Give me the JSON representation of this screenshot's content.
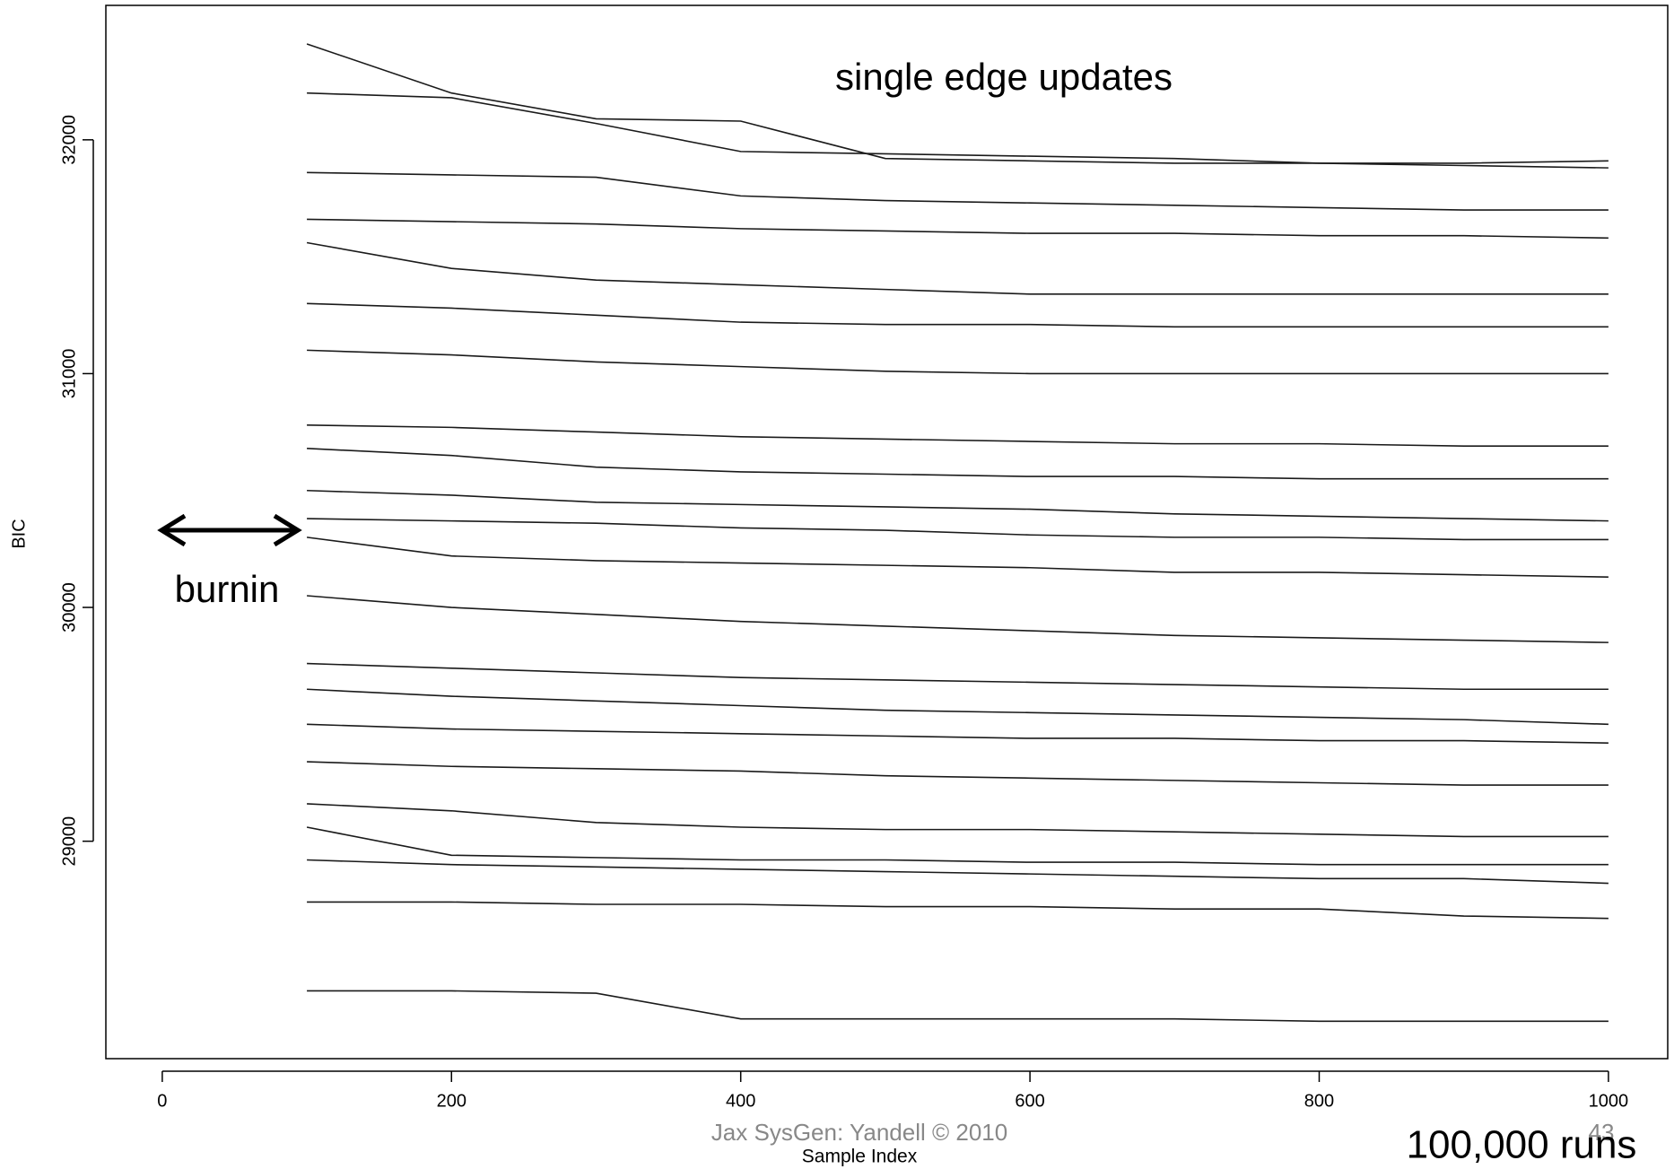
{
  "chart_data": {
    "type": "line",
    "title": "single edge  updates",
    "x_label": "Sample Index",
    "y_label": "BIC",
    "annotations": [
      "burnin",
      "100,000 runs"
    ],
    "footer": "Jax SysGen: Yandell © 2010",
    "page_number": "43",
    "color": "#1a1a1a",
    "grid": false,
    "xlim": [
      -39,
      1041
    ],
    "ylim": [
      28070,
      32575
    ],
    "xticks": [
      0,
      200,
      400,
      600,
      800,
      1000
    ],
    "yticks": [
      29000,
      30000,
      31000,
      32000
    ],
    "x": [
      100,
      200,
      300,
      400,
      500,
      600,
      700,
      800,
      900,
      1000
    ],
    "series": [
      {
        "values": [
          32410,
          32200,
          32090,
          32080,
          31920,
          31910,
          31900,
          31900,
          31900,
          31910
        ]
      },
      {
        "values": [
          32200,
          32180,
          32070,
          31950,
          31940,
          31930,
          31920,
          31900,
          31890,
          31880
        ]
      },
      {
        "values": [
          31860,
          31850,
          31840,
          31760,
          31740,
          31730,
          31720,
          31710,
          31700,
          31700
        ]
      },
      {
        "values": [
          31660,
          31650,
          31640,
          31620,
          31610,
          31600,
          31600,
          31590,
          31590,
          31580
        ]
      },
      {
        "values": [
          31560,
          31450,
          31400,
          31380,
          31360,
          31340,
          31340,
          31340,
          31340,
          31340
        ]
      },
      {
        "values": [
          31300,
          31280,
          31250,
          31220,
          31210,
          31210,
          31200,
          31200,
          31200,
          31200
        ]
      },
      {
        "values": [
          31100,
          31080,
          31050,
          31030,
          31010,
          31000,
          31000,
          31000,
          31000,
          31000
        ]
      },
      {
        "values": [
          30780,
          30770,
          30750,
          30730,
          30720,
          30710,
          30700,
          30700,
          30690,
          30690
        ]
      },
      {
        "values": [
          30680,
          30650,
          30600,
          30580,
          30570,
          30560,
          30560,
          30550,
          30550,
          30550
        ]
      },
      {
        "values": [
          30500,
          30480,
          30450,
          30440,
          30430,
          30420,
          30400,
          30390,
          30380,
          30370
        ]
      },
      {
        "values": [
          30380,
          30370,
          30360,
          30340,
          30330,
          30310,
          30300,
          30300,
          30290,
          30290
        ]
      },
      {
        "values": [
          30300,
          30220,
          30200,
          30190,
          30180,
          30170,
          30150,
          30150,
          30140,
          30130
        ]
      },
      {
        "values": [
          30050,
          30000,
          29970,
          29940,
          29920,
          29900,
          29880,
          29870,
          29860,
          29850
        ]
      },
      {
        "values": [
          29760,
          29740,
          29720,
          29700,
          29690,
          29680,
          29670,
          29660,
          29650,
          29650
        ]
      },
      {
        "values": [
          29650,
          29620,
          29600,
          29580,
          29560,
          29550,
          29540,
          29530,
          29520,
          29500
        ]
      },
      {
        "values": [
          29500,
          29480,
          29470,
          29460,
          29450,
          29440,
          29440,
          29430,
          29430,
          29420
        ]
      },
      {
        "values": [
          29340,
          29320,
          29310,
          29300,
          29280,
          29270,
          29260,
          29250,
          29240,
          29240
        ]
      },
      {
        "values": [
          29160,
          29130,
          29080,
          29060,
          29050,
          29050,
          29040,
          29030,
          29020,
          29020
        ]
      },
      {
        "values": [
          29060,
          28940,
          28930,
          28920,
          28920,
          28910,
          28910,
          28900,
          28900,
          28900
        ]
      },
      {
        "values": [
          28920,
          28900,
          28890,
          28880,
          28870,
          28860,
          28850,
          28840,
          28840,
          28820
        ]
      },
      {
        "values": [
          28740,
          28740,
          28730,
          28730,
          28720,
          28720,
          28710,
          28710,
          28680,
          28670
        ]
      },
      {
        "values": [
          28360,
          28360,
          28350,
          28240,
          28240,
          28240,
          28240,
          28230,
          28230,
          28230
        ]
      }
    ]
  }
}
